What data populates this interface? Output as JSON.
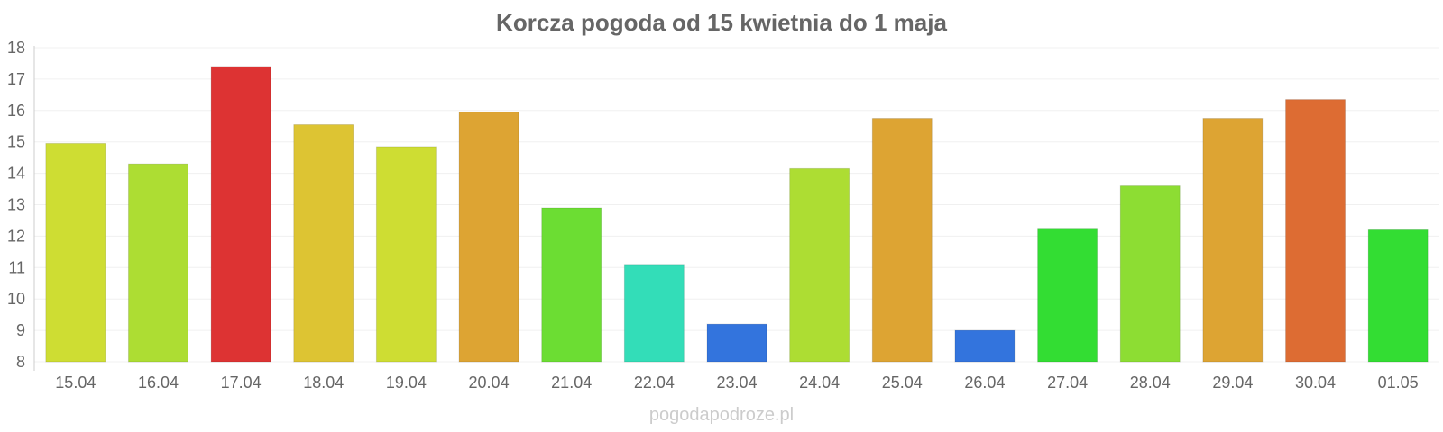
{
  "chart_data": {
    "type": "bar",
    "title": "Korcza pogoda od 15 kwietnia do 1 maja",
    "xlabel": "",
    "ylabel": "",
    "ylim": [
      8,
      18
    ],
    "yticks": [
      8,
      9,
      10,
      11,
      12,
      13,
      14,
      15,
      16,
      17,
      18
    ],
    "grid": true,
    "categories": [
      "15.04",
      "16.04",
      "17.04",
      "18.04",
      "19.04",
      "20.04",
      "21.04",
      "22.04",
      "23.04",
      "24.04",
      "25.04",
      "26.04",
      "27.04",
      "28.04",
      "29.04",
      "30.04",
      "01.05"
    ],
    "values": [
      14.95,
      14.3,
      17.4,
      15.55,
      14.85,
      15.95,
      12.9,
      11.1,
      9.2,
      14.15,
      15.75,
      9.0,
      12.25,
      13.6,
      15.75,
      16.35,
      12.2
    ],
    "colors": [
      "#cedd33",
      "#addd33",
      "#dd3333",
      "#ddc433",
      "#cedd33",
      "#dda433",
      "#6cdd33",
      "#33ddb8",
      "#3374dd",
      "#addd33",
      "#dda433",
      "#3374dd",
      "#33dd33",
      "#8ddd33",
      "#dda433",
      "#dd6c33",
      "#33dd33"
    ]
  },
  "watermark": "pogodapodroze.pl"
}
